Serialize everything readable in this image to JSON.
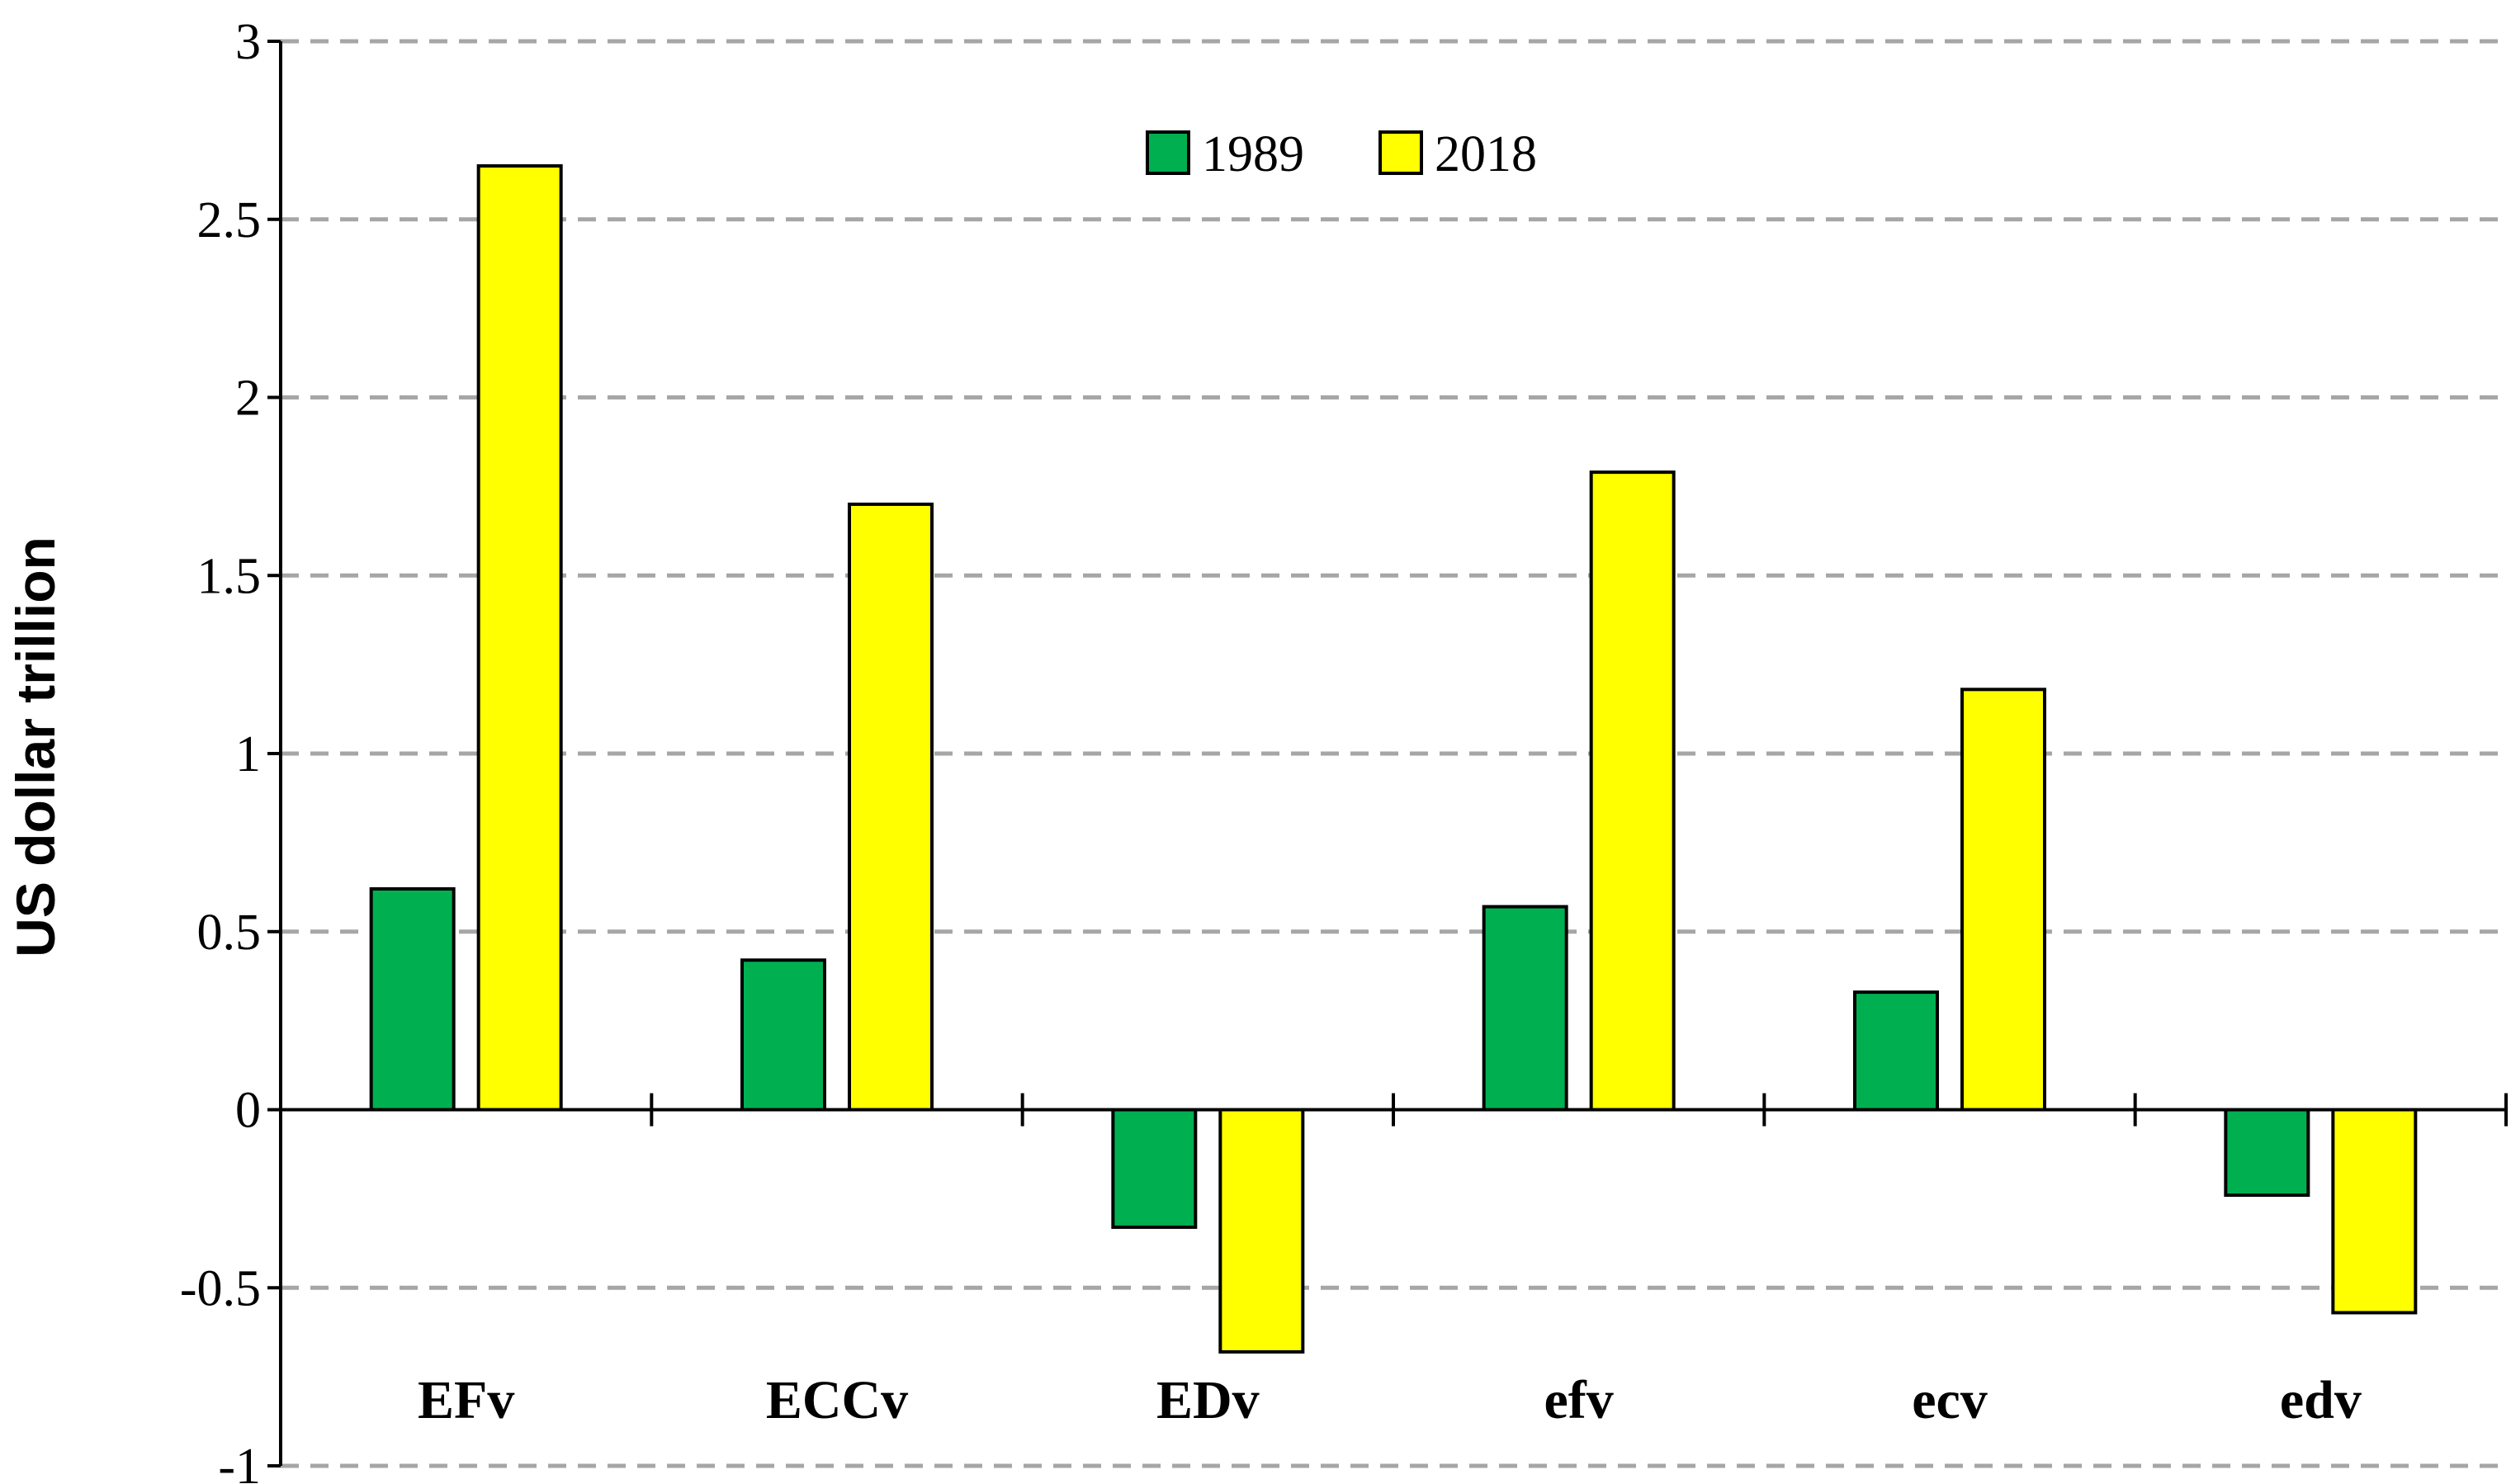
{
  "chart_data": {
    "type": "bar",
    "title": "",
    "xlabel": "",
    "ylabel": "US dollar trillion",
    "ylim": [
      -1,
      3
    ],
    "yticks": [
      -1,
      -0.5,
      0,
      0.5,
      1,
      1.5,
      2,
      2.5,
      3
    ],
    "ytick_labels": [
      "-1",
      "-0.5",
      "0",
      "0.5",
      "1",
      "1.5",
      "2",
      "2.5",
      "3"
    ],
    "grid": "horizontal-dashed",
    "legend_position": "top-center",
    "categories": [
      "EFv",
      "ECCv",
      "EDv",
      "efv",
      "ecv",
      "edv"
    ],
    "series": [
      {
        "name": "1989",
        "color": "#00b050",
        "values": [
          0.62,
          0.42,
          -0.33,
          0.57,
          0.33,
          -0.24
        ]
      },
      {
        "name": "2018",
        "color": "#ffff00",
        "values": [
          2.65,
          1.7,
          -0.68,
          1.79,
          1.18,
          -0.57
        ]
      }
    ]
  }
}
